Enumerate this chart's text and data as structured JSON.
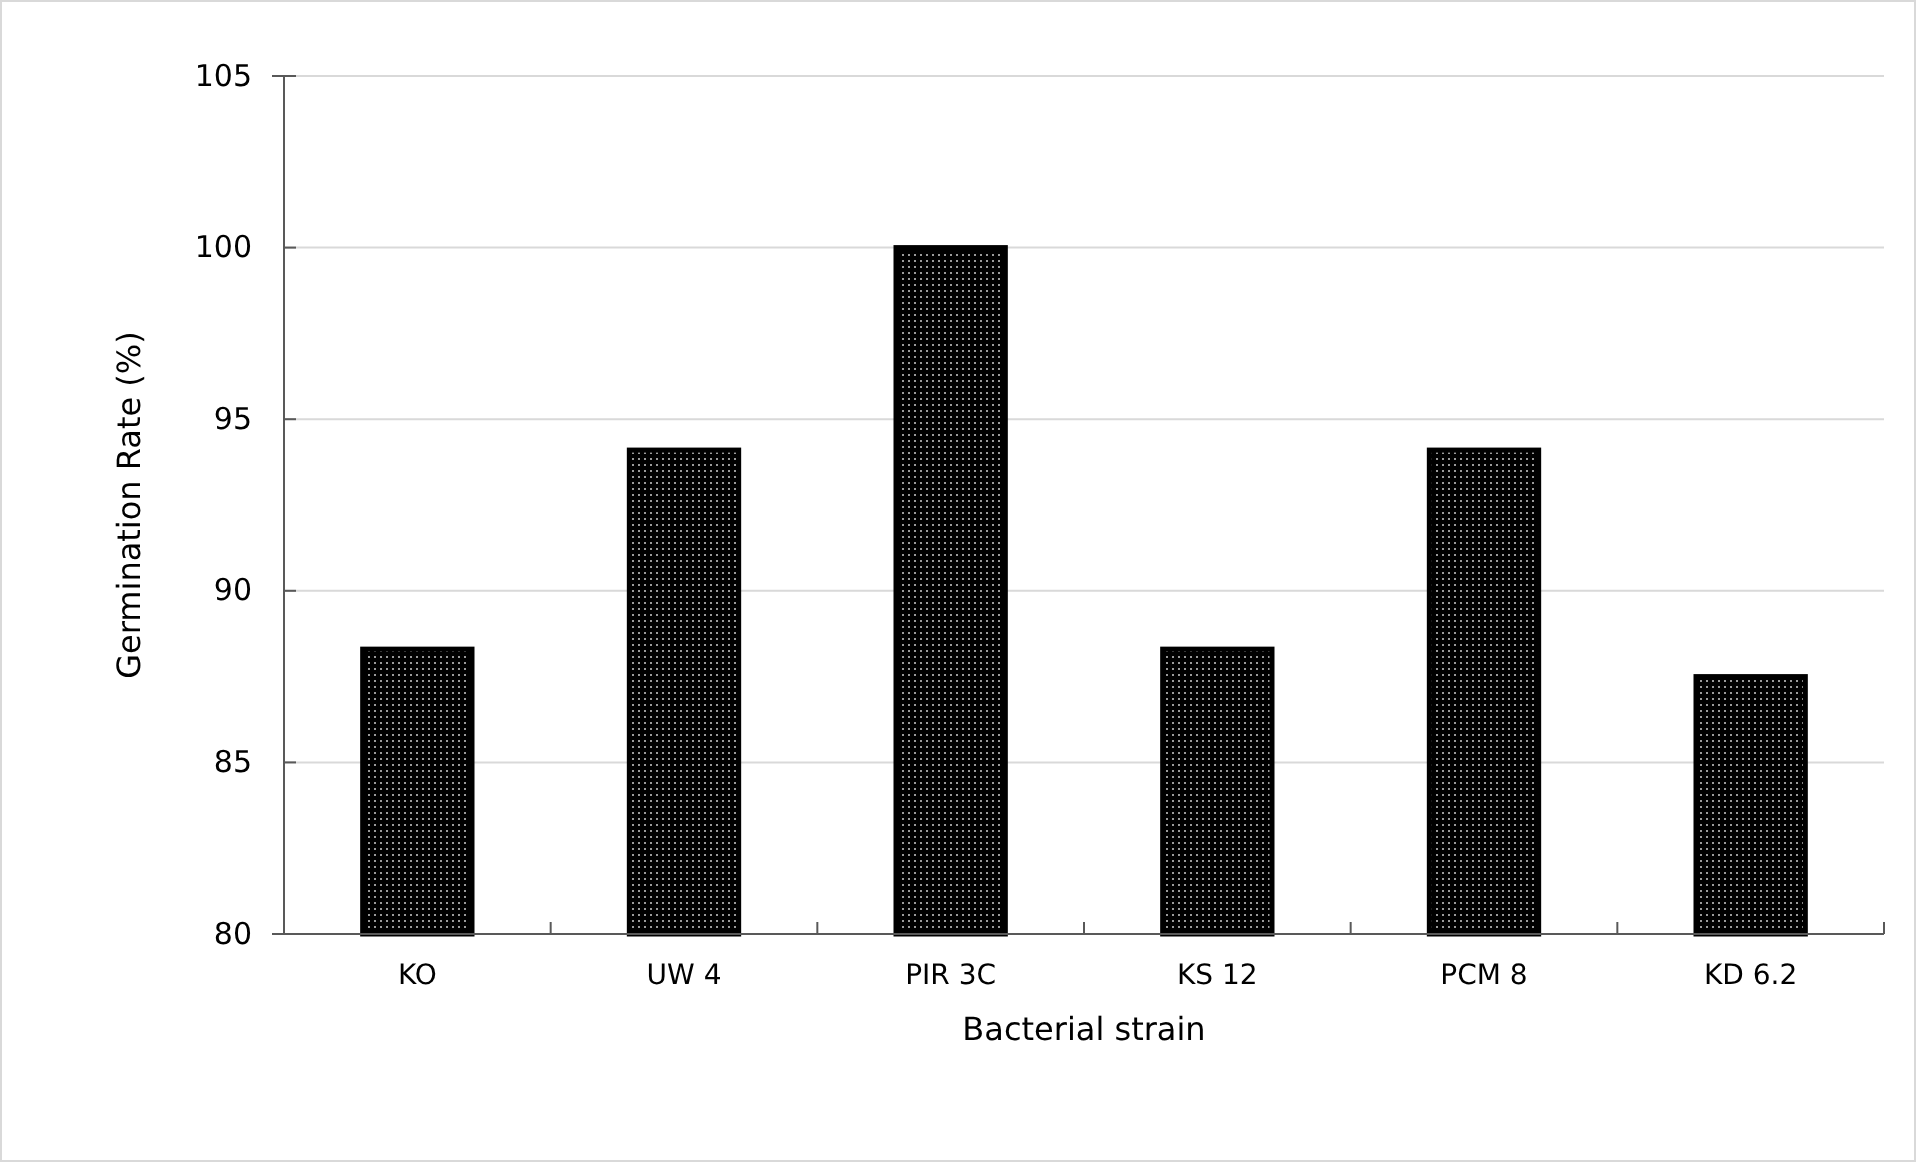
{
  "chart_data": {
    "type": "bar",
    "xlabel": "Bacterial strain",
    "ylabel": "Germination Rate (%)",
    "categories": [
      "KO",
      "UW 4",
      "PIR 3C",
      "KS 12",
      "PCM 8",
      "KD 6.2"
    ],
    "values": [
      88.3,
      94.1,
      100,
      88.3,
      94.1,
      87.5
    ],
    "color": "#000000",
    "ylim": [
      80,
      105
    ],
    "yticks": [
      80,
      85,
      90,
      95,
      100,
      105
    ],
    "grid": "y"
  }
}
